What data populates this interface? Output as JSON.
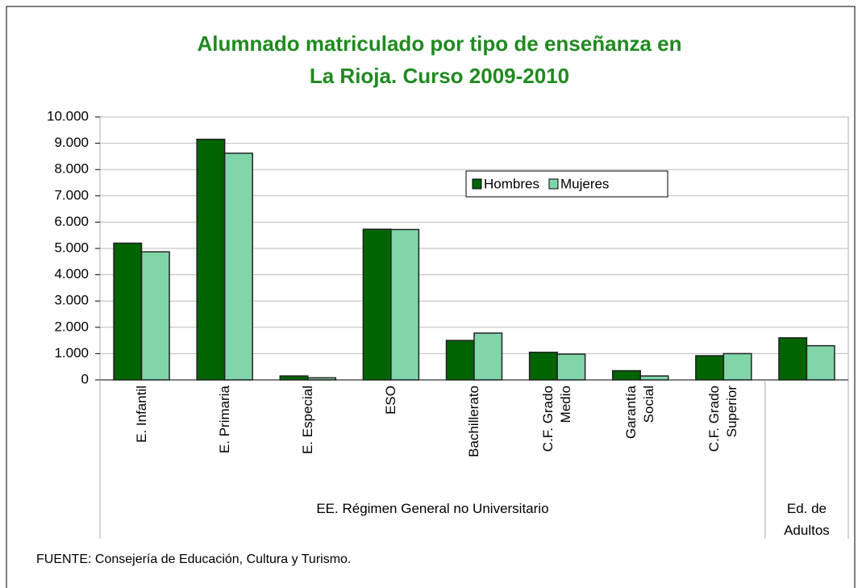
{
  "chart_data": {
    "type": "bar",
    "title": "Alumnado matriculado por tipo de enseñanza en\nLa Rioja. Curso 2009-2010",
    "groups": [
      {
        "label": "EE. Régimen General no Universitario",
        "categories": [
          "E. Infantil",
          "E. Primaria",
          "E. Especial",
          "ESO",
          "Bachillerato",
          "C.F. Grado\nMedio",
          "Garantía\nSocial",
          "C.F. Grado\nSuperior"
        ]
      },
      {
        "label": "Ed. de\nAdultos",
        "categories": [
          null
        ]
      }
    ],
    "series": [
      {
        "name": "Hombres",
        "color": "#006400",
        "values": [
          5200,
          9150,
          150,
          5730,
          1500,
          1050,
          350,
          920,
          1600
        ]
      },
      {
        "name": "Mujeres",
        "color": "#80d6a8",
        "values": [
          4870,
          8620,
          80,
          5720,
          1780,
          980,
          150,
          1000,
          1300
        ]
      }
    ],
    "ylim": [
      0,
      10000
    ],
    "yticks": [
      0,
      {
        "value": 1000,
        "label": "1.000"
      },
      {
        "value": 2000,
        "label": "2.000"
      },
      {
        "value": 3000,
        "label": "3.000"
      },
      {
        "value": 4000,
        "label": "4.000"
      },
      {
        "value": 5000,
        "label": "5.000"
      },
      {
        "value": 6000,
        "label": "6.000"
      },
      {
        "value": 7000,
        "label": "7.000"
      },
      {
        "value": 8000,
        "label": "8.000"
      },
      {
        "value": 9000,
        "label": "9.000"
      },
      {
        "value": 10000,
        "label": "10.000"
      }
    ],
    "grid": true,
    "source": "FUENTE: Consejería de Educación, Cultura y Turismo."
  }
}
